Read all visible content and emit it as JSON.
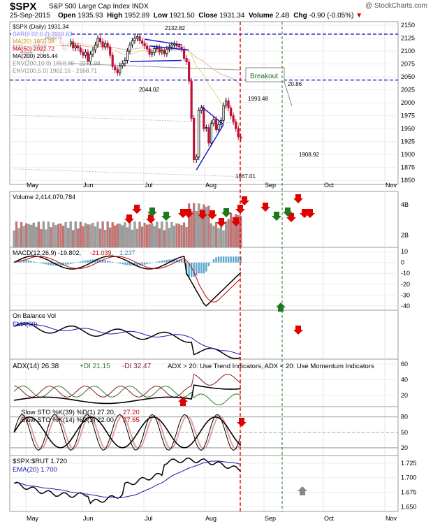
{
  "header": {
    "ticker": "$SPX",
    "name": "S&P 500 Large Cap Index",
    "exchange": "INDX",
    "watermark": "@ StockCharts.com",
    "date": "25-Sep-2015",
    "open_label": "Open",
    "open": "1935.93",
    "high_label": "High",
    "high": "1952.89",
    "low_label": "Low",
    "low": "1921.50",
    "close_label": "Close",
    "close": "1931.34",
    "volume_label": "Volume",
    "volume": "2.4B",
    "chg_label": "Chg",
    "chg": "-0.90 (-0.05%)"
  },
  "chart_data": [
    {
      "type": "line",
      "panel": "price",
      "legend": [
        {
          "label": "$SPX (Daily) 1931.34",
          "color": "#000000"
        },
        {
          "label": "SAR(0.02,0.2) 2018.62",
          "color": "#8888ff"
        },
        {
          "label": "MA(20) 1955.38",
          "color": "#d4a017"
        },
        {
          "label": "MA(50) 2022.72",
          "color": "#cc0000"
        },
        {
          "label": "MA(200) 2065.44",
          "color": "#000000"
        },
        {
          "label": "ENV(200,10.0) 1858.89 - 2271.98",
          "color": "#888888"
        },
        {
          "label": "ENV(200,5.0) 1962.16 - 2168.71",
          "color": "#888888"
        }
      ],
      "y_ticks": [
        2150,
        2125,
        2100,
        2075,
        2050,
        2025,
        2000,
        1975,
        1950,
        1925,
        1900,
        1875,
        1850
      ],
      "ylim": [
        1842,
        2157
      ],
      "x_labels": [
        "May",
        "Jun",
        "Jul",
        "Aug",
        "Sep",
        "Oct",
        "Nov"
      ],
      "horizontal_lines": [
        2132.82,
        2044.02
      ],
      "annotations": [
        "2132.82",
        "2044.02",
        "1993.48",
        "1867.01",
        "1908.92",
        "20.86",
        "Breakout"
      ],
      "closes": [
        2108,
        2105,
        2110,
        2095,
        2100,
        2088,
        2096,
        2104,
        2112,
        2118,
        2108,
        2100,
        2112,
        2125,
        2128,
        2122,
        2125,
        2130,
        2128,
        2115,
        2104,
        2110,
        2114,
        2118,
        2106,
        2110,
        2106,
        2098,
        2092,
        2098,
        2080,
        2094,
        2102,
        2112,
        2125,
        2118,
        2108,
        2115,
        2108,
        2092,
        2070,
        2064,
        2058,
        2072,
        2076,
        2082,
        2100,
        2112,
        2120,
        2125,
        2128,
        2120,
        2115,
        2110,
        2104,
        2094,
        2097,
        2105,
        2107,
        2098,
        2101,
        2095,
        2104,
        2108,
        2112,
        2114,
        2110,
        2108,
        2104,
        2086,
        2079,
        2042,
        1970,
        1890,
        1895,
        1985,
        1990,
        1950,
        1952,
        1922,
        1960,
        1968,
        1948,
        1958,
        1966,
        1995,
        2004,
        1990,
        1975,
        1963,
        1950,
        1934,
        1931
      ]
    },
    {
      "type": "bar",
      "panel": "volume",
      "legend": [
        {
          "label": "Volume 2,414,070,784",
          "color": "#000000"
        }
      ],
      "y_ticks": [
        "4B",
        "2B"
      ]
    },
    {
      "type": "line",
      "panel": "macd",
      "legend": [
        {
          "label": "MACD(12,26,9) -19.802,",
          "color": "#000000"
        },
        {
          "label": "-21.039,",
          "color": "#cc0000"
        },
        {
          "label": "1.237",
          "color": "#3a88b0"
        }
      ],
      "y_ticks": [
        10,
        0,
        -10,
        -20,
        -30,
        -40
      ],
      "ylim": [
        -44,
        14
      ]
    },
    {
      "type": "line",
      "panel": "obv",
      "legend": [
        {
          "label": "On Balance Vol",
          "color": "#000000"
        },
        {
          "label": "EMA(20)",
          "color": "#1a1aa8"
        }
      ]
    },
    {
      "type": "line",
      "panel": "adx",
      "legend": [
        {
          "label": "ADX(14) 26.38",
          "color": "#000000"
        },
        {
          "label": "+DI 21.15",
          "color": "#2a7a2a"
        },
        {
          "label": "-DI 32.47",
          "color": "#8a1a2a"
        },
        {
          "label": "ADX > 20: Use Trend Indicators, ADX < 20: Use Momentum Indicators",
          "color": "#000000"
        }
      ],
      "y_ticks": [
        60,
        40,
        20
      ],
      "ylim": [
        6,
        66
      ]
    },
    {
      "type": "line",
      "panel": "stochastics",
      "legend": [
        {
          "label": "Slow STO %K(39) %D(1) 27.20,",
          "color": "#000000"
        },
        {
          "label": "27.20",
          "color": "#cc0000"
        },
        {
          "label": "Slow STO %K(14) %D(3) 22.00,",
          "color": "#000000"
        },
        {
          "label": "27.65",
          "color": "#cc0000"
        }
      ],
      "y_ticks": [
        80,
        50,
        20
      ],
      "ylim": [
        5,
        100
      ]
    },
    {
      "type": "line",
      "panel": "ratio",
      "legend": [
        {
          "label": "$SPX:$RUT 1.720",
          "color": "#000000"
        },
        {
          "label": "EMA(20) 1.700",
          "color": "#1a1aa8"
        }
      ],
      "y_ticks": [
        1.725,
        1.7,
        1.675,
        1.65
      ],
      "ylim": [
        1.642,
        1.738
      ],
      "x_labels": [
        "May",
        "Jun",
        "Jul",
        "Aug",
        "Sep",
        "Oct",
        "Nov"
      ]
    }
  ]
}
